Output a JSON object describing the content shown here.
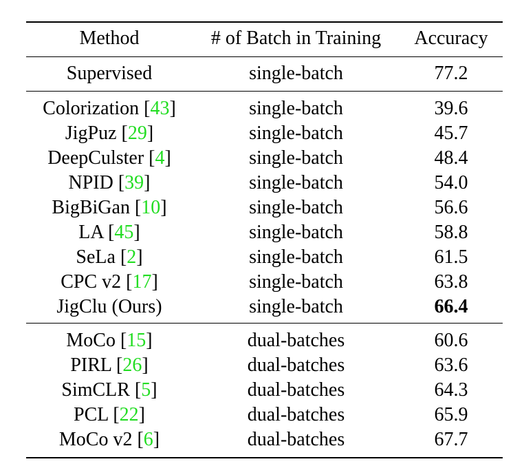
{
  "table": {
    "headers": {
      "method": "Method",
      "batch": "# of Batch in Training",
      "accuracy": "Accuracy"
    },
    "sections": [
      {
        "rows": [
          {
            "method": "Supervised",
            "cite": "",
            "batch": "single-batch",
            "accuracy": "77.2",
            "bold": false
          }
        ]
      },
      {
        "rows": [
          {
            "method": "Colorization",
            "cite": "43",
            "batch": "single-batch",
            "accuracy": "39.6",
            "bold": false
          },
          {
            "method": "JigPuz",
            "cite": "29",
            "batch": "single-batch",
            "accuracy": "45.7",
            "bold": false
          },
          {
            "method": "DeepCulster",
            "cite": "4",
            "batch": "single-batch",
            "accuracy": "48.4",
            "bold": false
          },
          {
            "method": "NPID",
            "cite": "39",
            "batch": "single-batch",
            "accuracy": "54.0",
            "bold": false
          },
          {
            "method": "BigBiGan",
            "cite": "10",
            "batch": "single-batch",
            "accuracy": "56.6",
            "bold": false
          },
          {
            "method": "LA",
            "cite": "45",
            "batch": "single-batch",
            "accuracy": "58.8",
            "bold": false
          },
          {
            "method": "SeLa",
            "cite": "2",
            "batch": "single-batch",
            "accuracy": "61.5",
            "bold": false
          },
          {
            "method": "CPC v2",
            "cite": "17",
            "batch": "single-batch",
            "accuracy": "63.8",
            "bold": false
          },
          {
            "method": "JigClu (Ours)",
            "cite": "",
            "batch": "single-batch",
            "accuracy": "66.4",
            "bold": true
          }
        ]
      },
      {
        "rows": [
          {
            "method": "MoCo",
            "cite": "15",
            "batch": "dual-batches",
            "accuracy": "60.6",
            "bold": false
          },
          {
            "method": "PIRL",
            "cite": "26",
            "batch": "dual-batches",
            "accuracy": "63.6",
            "bold": false
          },
          {
            "method": "SimCLR",
            "cite": "5",
            "batch": "dual-batches",
            "accuracy": "64.3",
            "bold": false
          },
          {
            "method": "PCL",
            "cite": "22",
            "batch": "dual-batches",
            "accuracy": "65.9",
            "bold": false
          },
          {
            "method": "MoCo v2",
            "cite": "6",
            "batch": "dual-batches",
            "accuracy": "67.7",
            "bold": false
          }
        ]
      }
    ],
    "citation_color": "#22dd22"
  }
}
